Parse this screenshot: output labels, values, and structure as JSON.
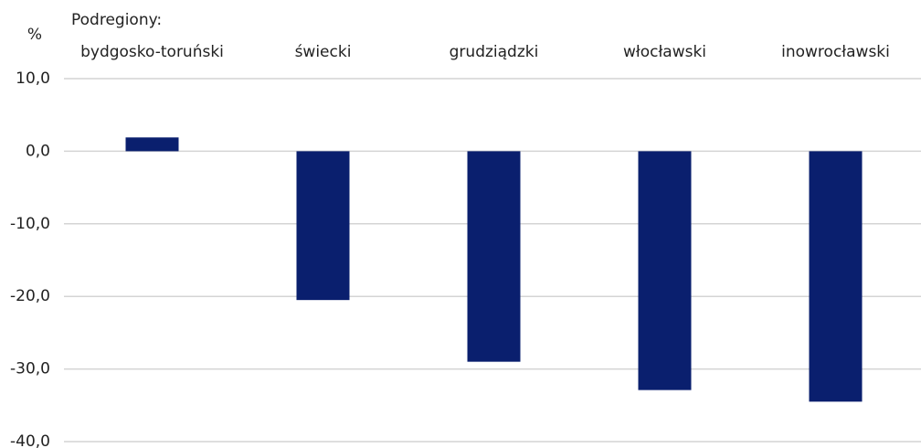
{
  "chart_data": {
    "type": "bar",
    "y_axis_label": "%",
    "x_axis_label": "Podregiony:",
    "categories": [
      "bydgosko-toruński",
      "świecki",
      "grudziądzki",
      "włocławski",
      "inowrocławski"
    ],
    "values": [
      1.9,
      -20.5,
      -29.0,
      -32.9,
      -34.5
    ],
    "color": "#0a1f6e",
    "ylim": [
      -40,
      10
    ],
    "yticks": [
      {
        "value": 10,
        "label": "10,0"
      },
      {
        "value": 0,
        "label": "0,0"
      },
      {
        "value": -10,
        "label": "-10,0"
      },
      {
        "value": -20,
        "label": "-20,0"
      },
      {
        "value": -30,
        "label": "-30,0"
      },
      {
        "value": -40,
        "label": "-40,0"
      }
    ],
    "grid": true
  }
}
